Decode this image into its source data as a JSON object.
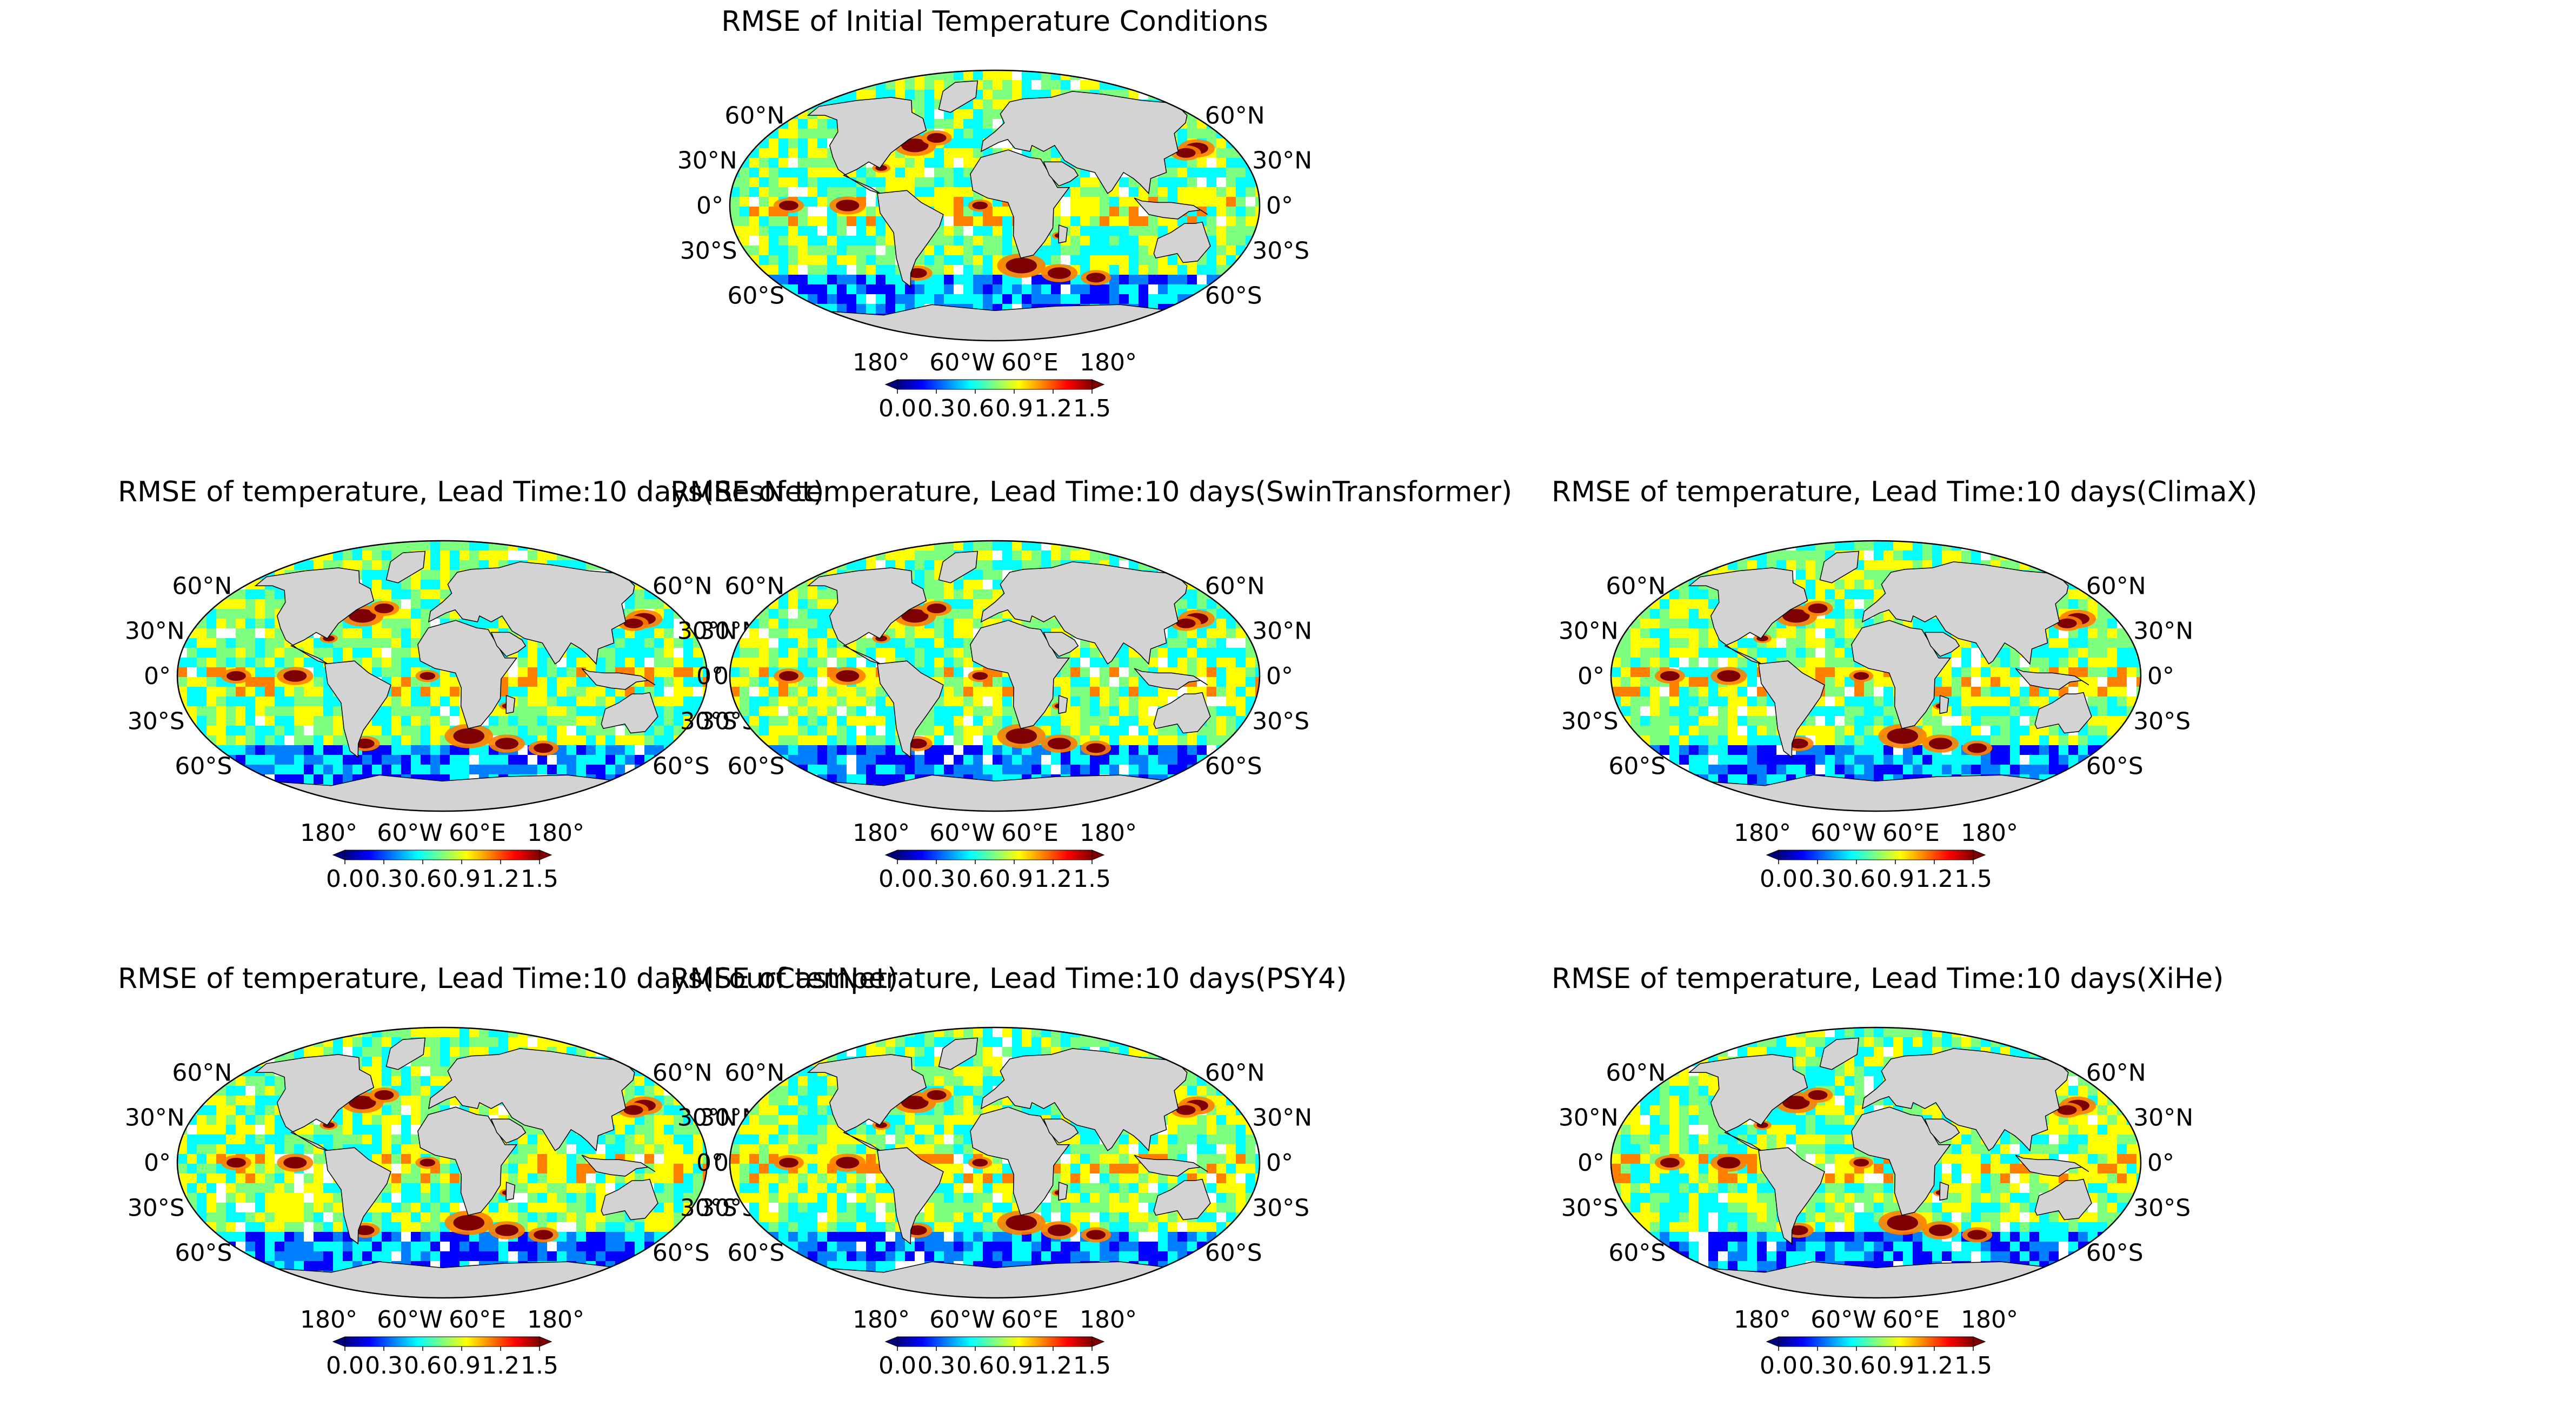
{
  "figure": {
    "colormap": [
      "#00007f",
      "#0000ff",
      "#007fff",
      "#00ffff",
      "#7fff7f",
      "#ffff00",
      "#ff7f00",
      "#ff0000",
      "#7f0000"
    ],
    "land_color": "#d3d3d3",
    "missing_color": "#ffffff"
  },
  "panels": [
    {
      "id": "initial",
      "title": "RMSE of Initial Temperature Conditions"
    },
    {
      "id": "resnet",
      "title": "RMSE of temperature, Lead Time:10 days(ResNet)"
    },
    {
      "id": "swin",
      "title": "RMSE of temperature, Lead Time:10 days(SwinTransformer)"
    },
    {
      "id": "climax",
      "title": "RMSE of temperature, Lead Time:10 days(ClimaX)"
    },
    {
      "id": "fourcastnet",
      "title": "RMSE of temperature, Lead Time:10 days(FourCastNet)"
    },
    {
      "id": "psy4",
      "title": "RMSE of temperature, Lead Time:10 days(PSY4)"
    },
    {
      "id": "xihe",
      "title": "RMSE of temperature, Lead Time:10 days(XiHe)"
    }
  ],
  "axes": {
    "lat_labels": [
      "60°N",
      "30°N",
      "0°",
      "30°S",
      "60°S"
    ],
    "lon_labels": [
      "180°",
      "60°W",
      "60°E",
      "180°"
    ]
  },
  "colorbar": {
    "ticks": [
      "0.0",
      "0.3",
      "0.6",
      "0.9",
      "1.2",
      "1.5"
    ],
    "min": 0.0,
    "max": 1.5,
    "extend": "both"
  }
}
